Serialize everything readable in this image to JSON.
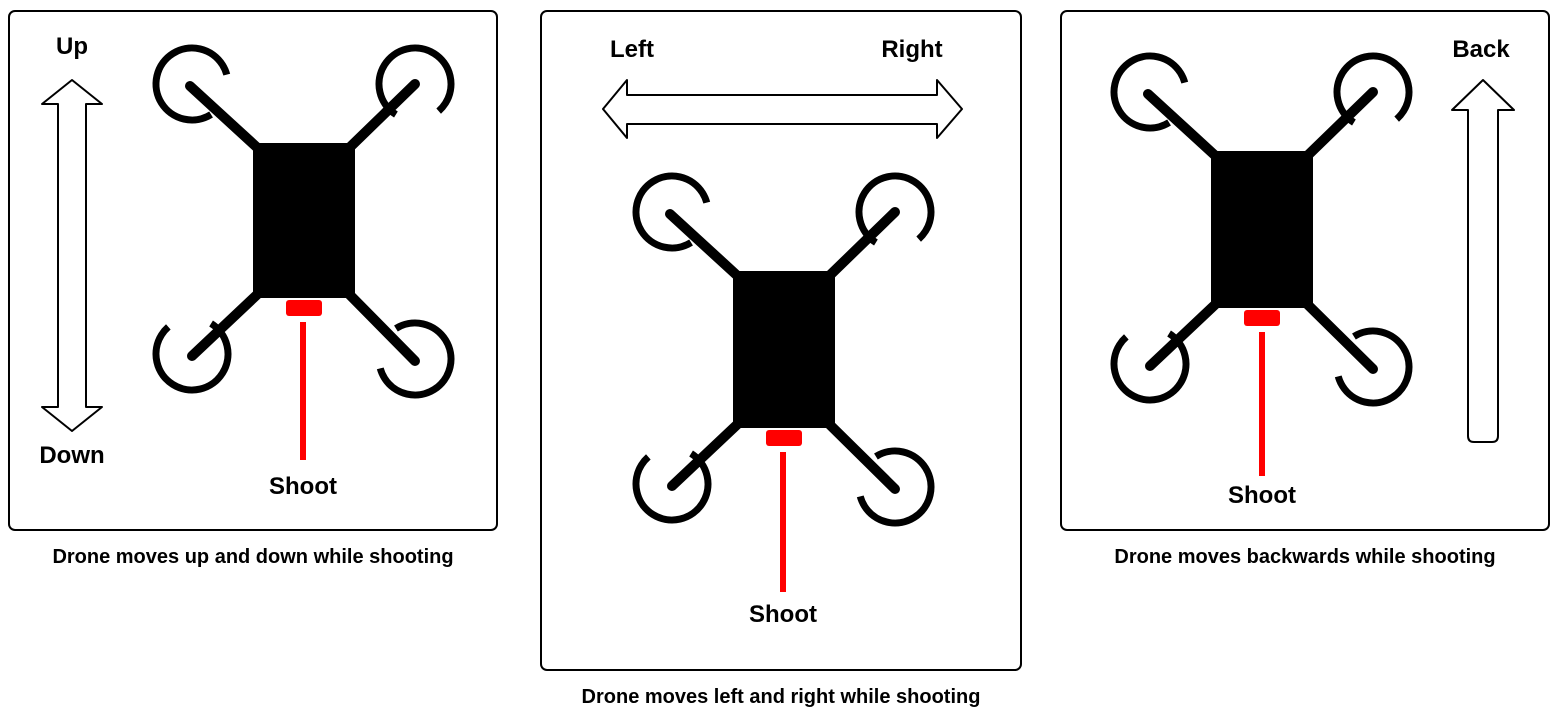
{
  "panels": [
    {
      "caption": "Drone moves up and down while shooting",
      "arrow_labels": [
        "Up",
        "Down"
      ],
      "shoot_label": "Shoot"
    },
    {
      "caption": "Drone moves left and right while shooting",
      "arrow_labels": [
        "Left",
        "Right"
      ],
      "shoot_label": "Shoot"
    },
    {
      "caption": "Drone moves backwards while shooting",
      "arrow_labels": [
        "Back"
      ],
      "shoot_label": "Shoot"
    }
  ],
  "colors": {
    "drone_body": "#000000",
    "gun": "#ff0000",
    "frame": "#000000",
    "background": "#ffffff"
  }
}
